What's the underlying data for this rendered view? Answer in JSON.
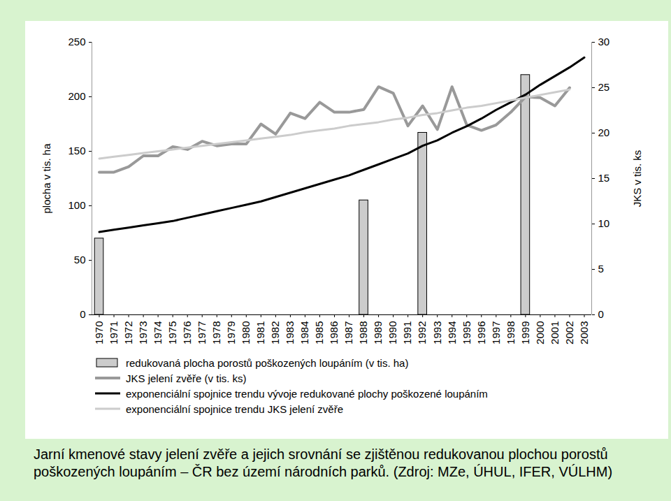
{
  "chart_data": {
    "type": "bar",
    "title": "Jarní kmenové stavy jelení zvěře a jejich srovnání se zjištěnou redukovanou plochou porostů poškozených loupáním – ČR bez území národních parků. (Zdroj: MZe, ÚHUL, IFER, VÚLHM)",
    "y_label": "plocha v tis. ha",
    "y2_label": "JKS v tis. ks",
    "categories": [
      "1970",
      "1971",
      "1972",
      "1973",
      "1974",
      "1975",
      "1976",
      "1977",
      "1978",
      "1979",
      "1980",
      "1981",
      "1982",
      "1983",
      "1984",
      "1985",
      "1986",
      "1987",
      "1988",
      "1989",
      "1990",
      "1991",
      "1992",
      "1993",
      "1994",
      "1995",
      "1996",
      "1997",
      "1998",
      "1999",
      "2000",
      "2001",
      "2002",
      "2003"
    ],
    "ylim": [
      0,
      250
    ],
    "yticks": [
      0,
      50,
      100,
      150,
      200,
      250
    ],
    "y2lim": [
      0,
      30
    ],
    "y2ticks": [
      0,
      5,
      10,
      15,
      20,
      25,
      30
    ],
    "grid": false,
    "series": [
      {
        "name": "redukovaná plocha porostů poškozených loupáním (v tis. ha)",
        "type": "bar",
        "color": "#cccccc",
        "values": [
          70,
          null,
          null,
          null,
          null,
          null,
          null,
          null,
          null,
          null,
          null,
          null,
          null,
          null,
          null,
          null,
          null,
          null,
          105,
          null,
          null,
          null,
          167,
          null,
          null,
          null,
          null,
          null,
          null,
          220,
          null,
          null,
          null,
          null
        ]
      },
      {
        "name": "JKS jelení zvěře (v tis. ks)",
        "type": "line",
        "axis": "y2",
        "color": "#999999",
        "values": [
          15.7,
          15.7,
          16.3,
          17.5,
          17.5,
          18.5,
          18.2,
          19.1,
          18.6,
          18.8,
          18.8,
          21.0,
          19.9,
          22.2,
          21.6,
          23.4,
          22.3,
          22.3,
          22.6,
          25.1,
          24.4,
          20.8,
          23.0,
          20.4,
          25.1,
          20.9,
          20.3,
          20.9,
          22.3,
          24.0,
          23.9,
          23.0,
          25.0,
          null
        ]
      },
      {
        "name": "exponenciální spojnice trendu vývoje redukované plochy poškozené loupáním",
        "type": "line",
        "color": "#000000",
        "values": [
          76,
          78,
          80,
          82,
          84,
          86,
          89,
          92,
          95,
          98,
          101,
          104,
          108,
          112,
          116,
          120,
          124,
          128,
          133,
          138,
          143,
          148,
          155,
          160,
          167,
          173,
          180,
          188,
          195,
          202,
          211,
          219,
          227,
          236
        ]
      },
      {
        "name": "exponenciální spojnice trendu JKS jelení zvěře",
        "type": "line",
        "axis": "y2",
        "color": "#cccccc",
        "values": [
          17.2,
          17.4,
          17.6,
          17.8,
          18.0,
          18.2,
          18.4,
          18.6,
          18.8,
          19.0,
          19.2,
          19.4,
          19.6,
          19.8,
          20.1,
          20.3,
          20.5,
          20.8,
          21.0,
          21.2,
          21.5,
          21.7,
          22.0,
          22.2,
          22.5,
          22.8,
          23.0,
          23.3,
          23.6,
          23.9,
          24.2,
          24.5,
          24.8,
          null
        ]
      }
    ]
  }
}
